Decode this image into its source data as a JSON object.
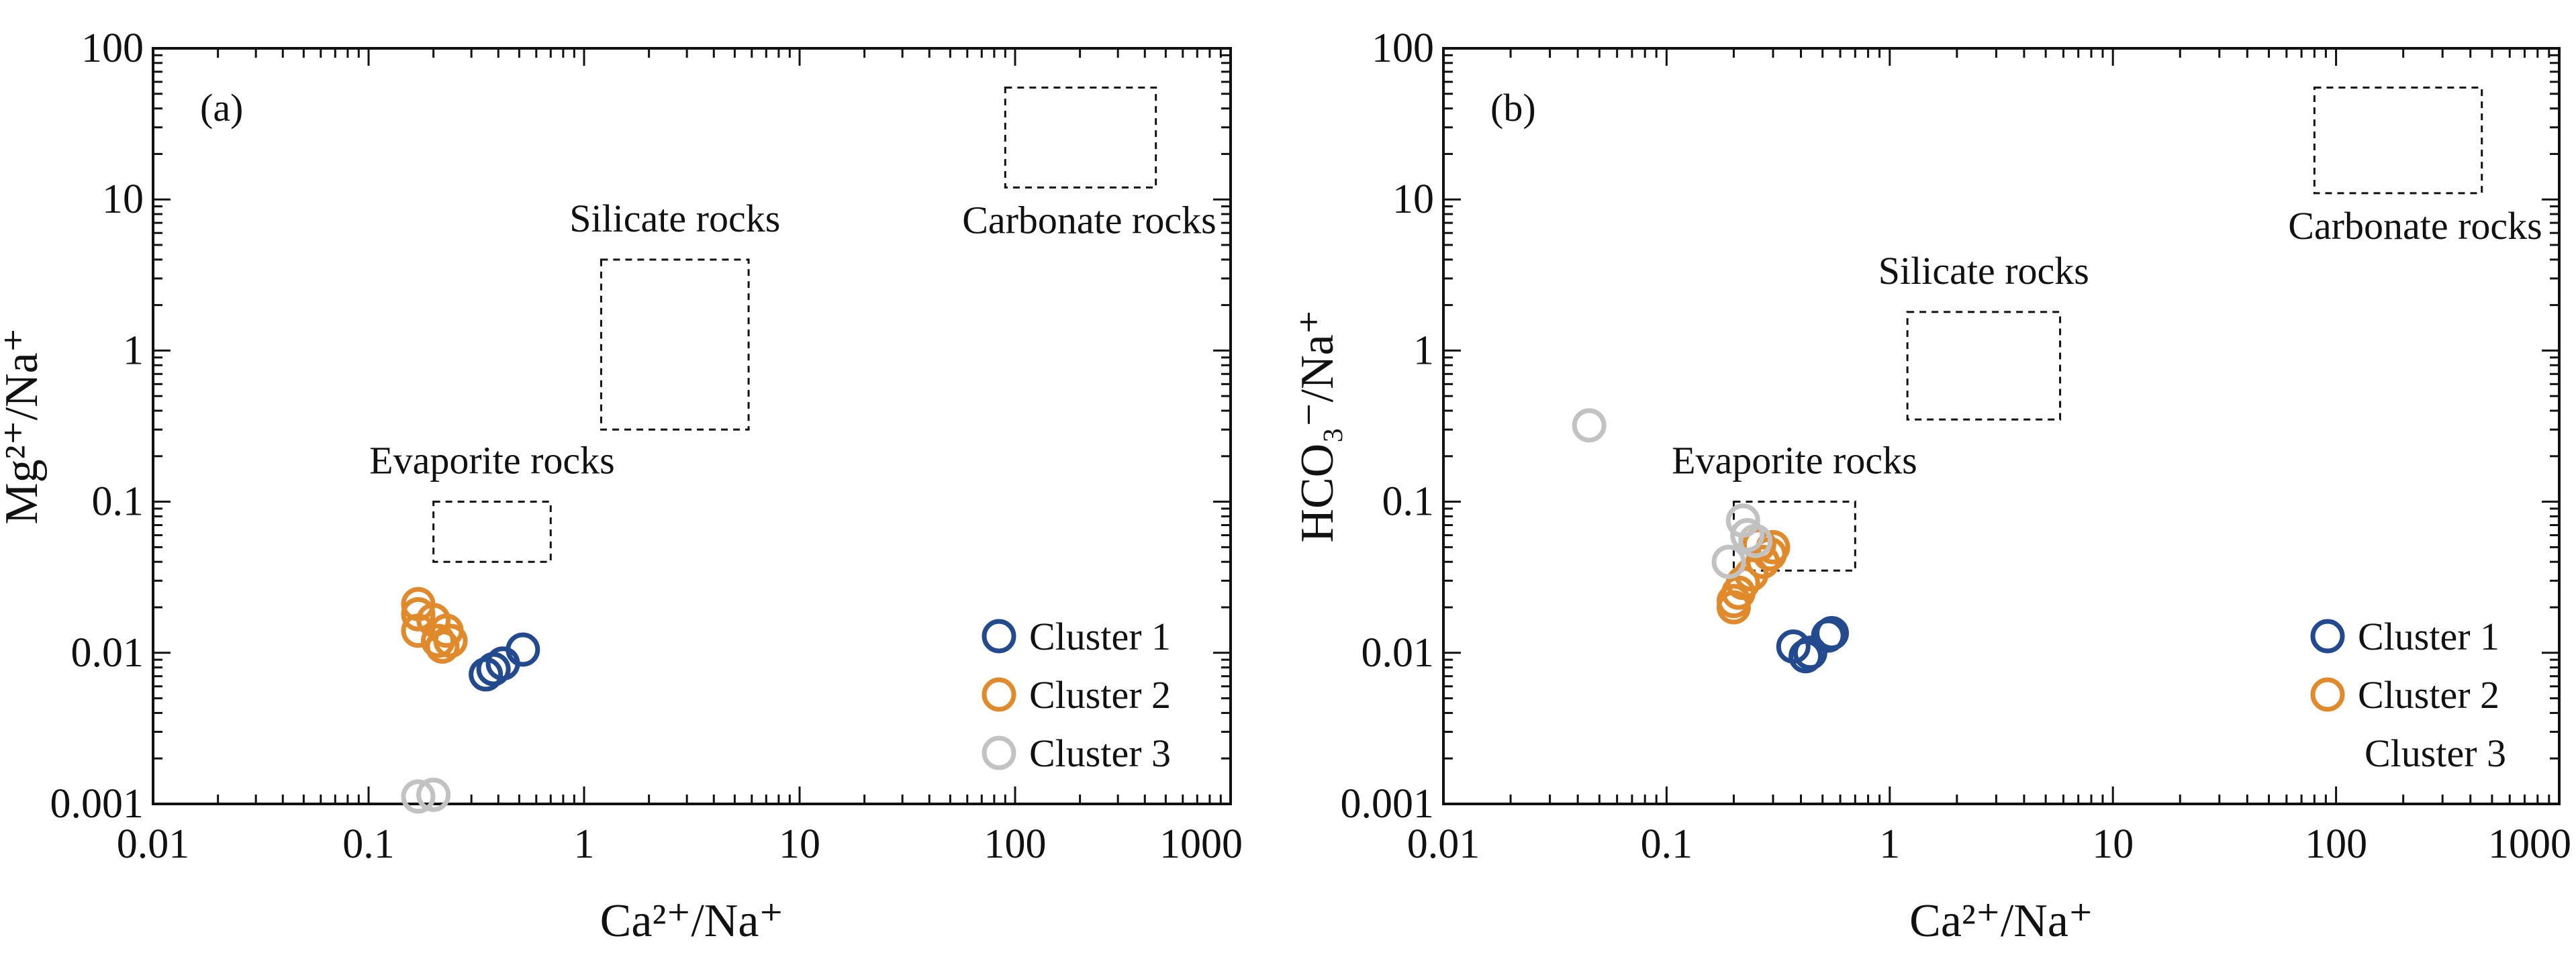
{
  "colors": {
    "cluster1": "#23498f",
    "cluster2": "#e08a2c",
    "cluster3": "#c2c2c2",
    "axis": "#111111",
    "background": "#ffffff"
  },
  "chart_data": [
    {
      "type": "scatter",
      "panel_label": "(a)",
      "xlabel": "Ca²⁺/Na⁺",
      "ylabel": "Mg²⁺/Na⁺",
      "xscale": "log",
      "yscale": "log",
      "xlim": [
        0.01,
        1000
      ],
      "ylim": [
        0.001,
        100
      ],
      "xticks": [
        0.01,
        0.1,
        1,
        10,
        100,
        1000
      ],
      "xtick_labels": [
        "0.01",
        "0.1",
        "1",
        "10",
        "100",
        "1000"
      ],
      "yticks": [
        0.001,
        0.01,
        0.1,
        1,
        10,
        100
      ],
      "ytick_labels": [
        "0.001",
        "0.01",
        "0.1",
        "1",
        "10",
        "100"
      ],
      "regions": [
        {
          "label": "Evaporite rocks",
          "x": [
            0.2,
            0.7
          ],
          "y": [
            0.04,
            0.1
          ]
        },
        {
          "label": "Silicate rocks",
          "x": [
            1.2,
            5.8
          ],
          "y": [
            0.3,
            4.0
          ]
        },
        {
          "label": "Carbonate rocks",
          "x": [
            90,
            450
          ],
          "y": [
            12,
            55
          ]
        }
      ],
      "series": [
        {
          "name": "Cluster 1",
          "color_key": "cluster1",
          "points": [
            [
              0.35,
              0.0072
            ],
            [
              0.38,
              0.0078
            ],
            [
              0.42,
              0.0085
            ],
            [
              0.52,
              0.0105
            ]
          ]
        },
        {
          "name": "Cluster 2",
          "color_key": "cluster2",
          "points": [
            [
              0.17,
              0.021
            ],
            [
              0.17,
              0.018
            ],
            [
              0.17,
              0.014
            ],
            [
              0.2,
              0.0165
            ],
            [
              0.21,
              0.012
            ],
            [
              0.22,
              0.011
            ],
            [
              0.23,
              0.014
            ],
            [
              0.24,
              0.012
            ]
          ]
        },
        {
          "name": "Cluster 3",
          "color_key": "cluster3",
          "points": [
            [
              0.17,
              0.00112
            ],
            [
              0.2,
              0.00115
            ]
          ]
        }
      ],
      "legend": [
        "Cluster 1",
        "Cluster 2",
        "Cluster 3"
      ],
      "legend_placement": "bottom-right"
    },
    {
      "type": "scatter",
      "panel_label": "(b)",
      "xlabel": "Ca²⁺/Na⁺",
      "ylabel": "HCO₃⁻/Na⁺",
      "xscale": "log",
      "yscale": "log",
      "xlim": [
        0.01,
        1000
      ],
      "ylim": [
        0.001,
        100
      ],
      "xticks": [
        0.01,
        0.1,
        1,
        10,
        100,
        1000
      ],
      "xtick_labels": [
        "0.01",
        "0.1",
        "1",
        "10",
        "100",
        "1000"
      ],
      "yticks": [
        0.001,
        0.01,
        0.1,
        1,
        10,
        100
      ],
      "ytick_labels": [
        "0.001",
        "0.01",
        "0.1",
        "1",
        "10",
        "100"
      ],
      "regions": [
        {
          "label": "Evaporite rocks",
          "x": [
            0.2,
            0.7
          ],
          "y": [
            0.035,
            0.1
          ]
        },
        {
          "label": "Silicate rocks",
          "x": [
            1.2,
            5.8
          ],
          "y": [
            0.35,
            1.8
          ]
        },
        {
          "label": "Carbonate rocks",
          "x": [
            80,
            450
          ],
          "y": [
            11,
            55
          ]
        }
      ],
      "series": [
        {
          "name": "Cluster 1",
          "color_key": "cluster1",
          "points": [
            [
              0.37,
              0.011
            ],
            [
              0.42,
              0.0095
            ],
            [
              0.44,
              0.01
            ],
            [
              0.55,
              0.0135
            ],
            [
              0.53,
              0.013
            ]
          ]
        },
        {
          "name": "Cluster 2",
          "color_key": "cluster2",
          "points": [
            [
              0.2,
              0.02
            ],
            [
              0.21,
              0.025
            ],
            [
              0.22,
              0.029
            ],
            [
              0.24,
              0.033
            ],
            [
              0.27,
              0.04
            ],
            [
              0.29,
              0.045
            ],
            [
              0.3,
              0.05
            ],
            [
              0.26,
              0.052
            ],
            [
              0.2,
              0.022
            ]
          ]
        },
        {
          "name": "Cluster 3",
          "color_key": "cluster3",
          "points": [
            [
              0.045,
              0.32
            ],
            [
              0.19,
              0.04
            ],
            [
              0.22,
              0.075
            ],
            [
              0.23,
              0.06
            ],
            [
              0.25,
              0.055
            ]
          ]
        }
      ],
      "legend": [
        "Cluster 1",
        "Cluster 2",
        "Cluster 3"
      ],
      "legend_symbols": [
        true,
        true,
        false
      ],
      "legend_placement": "bottom-right"
    }
  ]
}
